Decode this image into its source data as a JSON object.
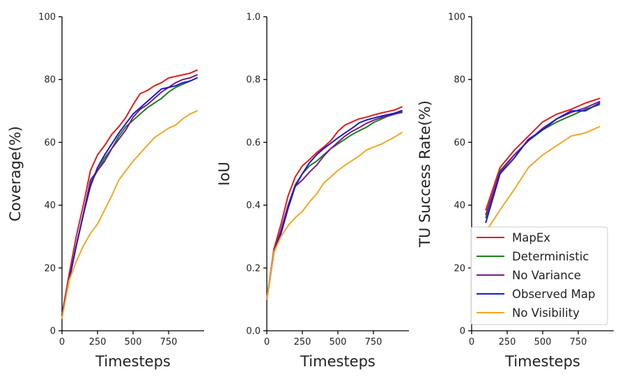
{
  "series_styles": [
    {
      "name": "MapEx",
      "color": "#e41a1a"
    },
    {
      "name": "Deterministic",
      "color": "#1a7f1a"
    },
    {
      "name": "No Variance",
      "color": "#7a1a8a"
    },
    {
      "name": "Observed Map",
      "color": "#1a1acc"
    },
    {
      "name": "No Visibility",
      "color": "#f5a623"
    }
  ],
  "chart_data": [
    {
      "type": "line",
      "title": "",
      "xlabel": "Timesteps",
      "ylabel": "Coverage(%)",
      "xlim": [
        0,
        1000
      ],
      "ylim": [
        0,
        100
      ],
      "xticks": [
        0,
        250,
        500,
        750
      ],
      "yticks": [
        0,
        20,
        40,
        60,
        80,
        100
      ],
      "ytick_labels": [
        "0",
        "20",
        "40",
        "60",
        "80",
        "100"
      ],
      "legend": null,
      "series": [
        {
          "name": "MapEx",
          "x": [
            0,
            50,
            100,
            150,
            200,
            250,
            300,
            350,
            400,
            450,
            500,
            550,
            600,
            650,
            700,
            750,
            800,
            850,
            900,
            950
          ],
          "y": [
            5,
            18,
            30,
            40,
            51,
            56,
            59,
            62.5,
            65,
            68,
            72,
            75.5,
            76.5,
            78,
            79,
            80.5,
            81,
            81.5,
            82,
            83
          ]
        },
        {
          "name": "Deterministic",
          "x": [
            0,
            50,
            100,
            150,
            200,
            250,
            300,
            350,
            400,
            450,
            500,
            550,
            600,
            650,
            700,
            750,
            800,
            850,
            900,
            950
          ],
          "y": [
            5,
            16,
            27,
            37,
            47,
            51,
            55,
            58,
            62,
            65,
            67,
            69,
            71,
            72.5,
            74,
            76,
            77.5,
            78.5,
            79.5,
            80.5
          ]
        },
        {
          "name": "No Variance",
          "x": [
            0,
            50,
            100,
            150,
            200,
            250,
            300,
            350,
            400,
            450,
            500,
            550,
            600,
            650,
            700,
            750,
            800,
            850,
            900,
            950
          ],
          "y": [
            5,
            16,
            27,
            37,
            48,
            51,
            54,
            58,
            61,
            64,
            68,
            70.5,
            72,
            74,
            76,
            77.5,
            79,
            80,
            80.5,
            81.5
          ]
        },
        {
          "name": "Observed Map",
          "x": [
            0,
            50,
            100,
            150,
            200,
            250,
            300,
            350,
            400,
            450,
            500,
            550,
            600,
            650,
            700,
            750,
            800,
            850,
            900,
            950
          ],
          "y": [
            5,
            16,
            27,
            37,
            46,
            52,
            56,
            59.5,
            63,
            66,
            69,
            71,
            73,
            75,
            77,
            77.5,
            78,
            79,
            79.5,
            80.5
          ]
        },
        {
          "name": "No Visibility",
          "x": [
            0,
            50,
            100,
            150,
            200,
            250,
            300,
            350,
            400,
            450,
            500,
            550,
            600,
            650,
            700,
            750,
            800,
            850,
            900,
            950
          ],
          "y": [
            4,
            16,
            22,
            27,
            31,
            34,
            38.5,
            43,
            48,
            51,
            54,
            56.5,
            59,
            61.5,
            63,
            64.5,
            65.5,
            67.5,
            69,
            70
          ]
        }
      ]
    },
    {
      "type": "line",
      "title": "",
      "xlabel": "Timesteps",
      "ylabel": "IoU",
      "xlim": [
        0,
        1000
      ],
      "ylim": [
        0,
        1
      ],
      "xticks": [
        0,
        250,
        500,
        750
      ],
      "yticks": [
        0,
        0.2,
        0.4,
        0.6,
        0.8,
        1.0
      ],
      "ytick_labels": [
        "0.0",
        "0.2",
        "0.4",
        "0.6",
        "0.8",
        "1.0"
      ],
      "legend": null,
      "series": [
        {
          "name": "MapEx",
          "x": [
            0,
            50,
            100,
            150,
            200,
            250,
            300,
            350,
            400,
            450,
            500,
            550,
            600,
            650,
            700,
            750,
            800,
            850,
            900,
            950
          ],
          "y": [
            0.1,
            0.26,
            0.34,
            0.43,
            0.49,
            0.525,
            0.545,
            0.567,
            0.585,
            0.605,
            0.635,
            0.655,
            0.665,
            0.675,
            0.68,
            0.687,
            0.693,
            0.698,
            0.703,
            0.713
          ]
        },
        {
          "name": "Deterministic",
          "x": [
            0,
            50,
            100,
            150,
            200,
            250,
            300,
            350,
            400,
            450,
            500,
            550,
            600,
            650,
            700,
            750,
            800,
            850,
            900,
            950
          ],
          "y": [
            0.1,
            0.25,
            0.32,
            0.4,
            0.465,
            0.5,
            0.525,
            0.54,
            0.56,
            0.58,
            0.595,
            0.61,
            0.625,
            0.637,
            0.648,
            0.663,
            0.673,
            0.683,
            0.69,
            0.695
          ]
        },
        {
          "name": "No Variance",
          "x": [
            0,
            50,
            100,
            150,
            200,
            250,
            300,
            350,
            400,
            450,
            500,
            550,
            600,
            650,
            700,
            750,
            800,
            850,
            900,
            950
          ],
          "y": [
            0.1,
            0.25,
            0.32,
            0.4,
            0.46,
            0.48,
            0.505,
            0.527,
            0.556,
            0.58,
            0.6,
            0.62,
            0.635,
            0.647,
            0.66,
            0.67,
            0.678,
            0.684,
            0.69,
            0.697
          ]
        },
        {
          "name": "Observed Map",
          "x": [
            0,
            50,
            100,
            150,
            200,
            250,
            300,
            350,
            400,
            450,
            500,
            550,
            600,
            650,
            700,
            750,
            800,
            850,
            900,
            950
          ],
          "y": [
            0.1,
            0.25,
            0.31,
            0.39,
            0.46,
            0.5,
            0.535,
            0.56,
            0.58,
            0.597,
            0.614,
            0.63,
            0.645,
            0.662,
            0.671,
            0.677,
            0.683,
            0.688,
            0.693,
            0.701
          ]
        },
        {
          "name": "No Visibility",
          "x": [
            0,
            50,
            100,
            150,
            200,
            250,
            300,
            350,
            400,
            450,
            500,
            550,
            600,
            650,
            700,
            750,
            800,
            850,
            900,
            950
          ],
          "y": [
            0.1,
            0.25,
            0.3,
            0.335,
            0.36,
            0.38,
            0.41,
            0.435,
            0.47,
            0.49,
            0.51,
            0.527,
            0.542,
            0.557,
            0.575,
            0.585,
            0.593,
            0.605,
            0.617,
            0.631
          ]
        }
      ]
    },
    {
      "type": "line",
      "title": "",
      "xlabel": "Timesteps",
      "ylabel": "TU Success Rate(%)",
      "xlim": [
        0,
        1000
      ],
      "ylim": [
        0,
        100
      ],
      "xticks": [
        0,
        250,
        500,
        750
      ],
      "yticks": [
        0,
        20,
        40,
        60,
        80,
        100
      ],
      "ytick_labels": [
        "0",
        "20",
        "40",
        "60",
        "80",
        "100"
      ],
      "legend": "lower-right",
      "series": [
        {
          "name": "MapEx",
          "x": [
            100,
            200,
            300,
            400,
            500,
            600,
            700,
            800,
            900
          ],
          "y": [
            38.5,
            52,
            57.5,
            62,
            66.5,
            69,
            70.5,
            72.5,
            74
          ]
        },
        {
          "name": "Deterministic",
          "x": [
            100,
            200,
            300,
            400,
            500,
            600,
            700,
            800,
            900
          ],
          "y": [
            36,
            51,
            56,
            60.5,
            64,
            66.5,
            68.5,
            70.5,
            72
          ]
        },
        {
          "name": "No Variance",
          "x": [
            100,
            200,
            300,
            400,
            500,
            600,
            700,
            800,
            900
          ],
          "y": [
            37,
            50.5,
            56,
            60.5,
            64.5,
            67.5,
            69.5,
            71,
            73
          ]
        },
        {
          "name": "Observed Map",
          "x": [
            100,
            200,
            300,
            400,
            500,
            600,
            700,
            800,
            900
          ],
          "y": [
            34.5,
            50,
            55,
            61,
            64,
            67.5,
            70,
            70,
            72.5
          ]
        },
        {
          "name": "No Visibility",
          "x": [
            100,
            200,
            300,
            400,
            500,
            600,
            700,
            800,
            900
          ],
          "y": [
            31.5,
            38.5,
            45,
            52,
            56,
            59,
            62,
            63,
            65
          ]
        }
      ]
    }
  ]
}
